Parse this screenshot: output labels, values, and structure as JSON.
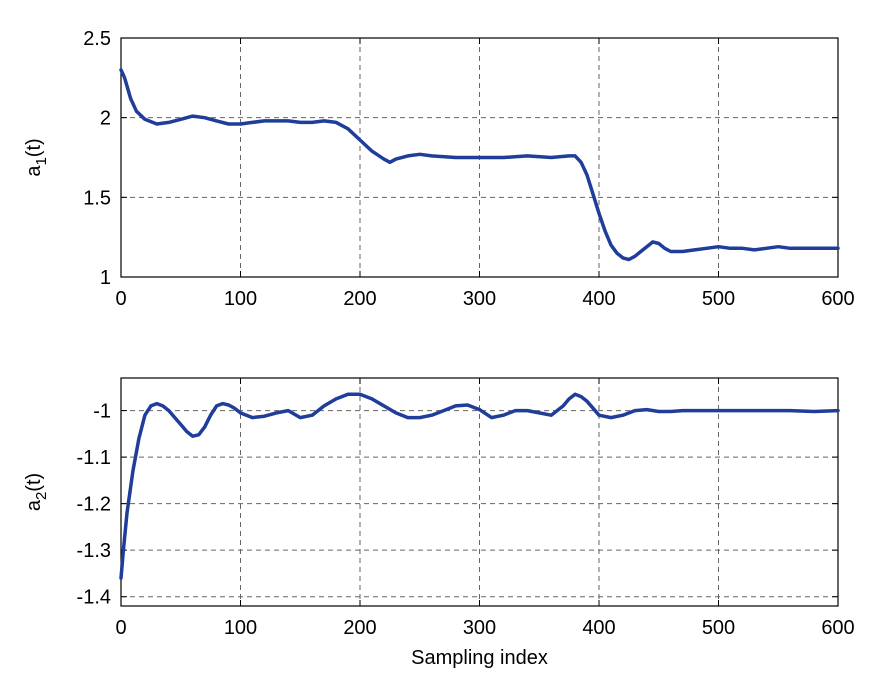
{
  "chart_data": [
    {
      "type": "line",
      "ylabel": "a1(t)",
      "ylabel_main": "a",
      "ylabel_sub": "1",
      "ylabel_tail": "(t)",
      "xlabel": "",
      "xlim": [
        0,
        600
      ],
      "ylim": [
        1,
        2.5
      ],
      "xticks": [
        0,
        100,
        200,
        300,
        400,
        500,
        600
      ],
      "yticks": [
        1,
        1.5,
        2,
        2.5
      ],
      "xtick_labels": [
        "0",
        "100",
        "200",
        "300",
        "400",
        "500",
        "600"
      ],
      "ytick_labels": [
        "1",
        "1.5",
        "2",
        "2.5"
      ],
      "grid": true,
      "series": [
        {
          "color": "#1f3d99",
          "x": [
            0,
            3,
            8,
            13,
            20,
            30,
            40,
            50,
            60,
            70,
            80,
            90,
            100,
            110,
            120,
            130,
            140,
            150,
            160,
            170,
            180,
            190,
            200,
            210,
            220,
            225,
            230,
            240,
            250,
            260,
            280,
            300,
            320,
            340,
            360,
            375,
            380,
            385,
            390,
            395,
            400,
            405,
            410,
            415,
            420,
            425,
            430,
            435,
            440,
            445,
            450,
            455,
            460,
            470,
            480,
            490,
            500,
            510,
            520,
            530,
            540,
            550,
            560,
            570,
            580,
            590,
            600
          ],
          "y": [
            2.3,
            2.25,
            2.12,
            2.04,
            1.99,
            1.96,
            1.97,
            1.99,
            2.01,
            2.0,
            1.98,
            1.96,
            1.96,
            1.97,
            1.98,
            1.98,
            1.98,
            1.97,
            1.97,
            1.98,
            1.97,
            1.93,
            1.86,
            1.79,
            1.74,
            1.72,
            1.74,
            1.76,
            1.77,
            1.76,
            1.75,
            1.75,
            1.75,
            1.76,
            1.75,
            1.76,
            1.76,
            1.72,
            1.64,
            1.52,
            1.4,
            1.29,
            1.2,
            1.15,
            1.12,
            1.11,
            1.13,
            1.16,
            1.19,
            1.22,
            1.21,
            1.18,
            1.16,
            1.16,
            1.17,
            1.18,
            1.19,
            1.18,
            1.18,
            1.17,
            1.18,
            1.19,
            1.18,
            1.18,
            1.18,
            1.18,
            1.18
          ]
        }
      ]
    },
    {
      "type": "line",
      "ylabel": "a2(t)",
      "ylabel_main": "a",
      "ylabel_sub": "2",
      "ylabel_tail": "(t)",
      "xlabel": "Sampling index",
      "xlim": [
        0,
        600
      ],
      "ylim": [
        -1.42,
        -0.93
      ],
      "xticks": [
        0,
        100,
        200,
        300,
        400,
        500,
        600
      ],
      "yticks": [
        -1.4,
        -1.3,
        -1.2,
        -1.1,
        -1
      ],
      "xtick_labels": [
        "0",
        "100",
        "200",
        "300",
        "400",
        "500",
        "600"
      ],
      "ytick_labels": [
        "-1.4",
        "-1.3",
        "-1.2",
        "-1.1",
        "-1"
      ],
      "grid": true,
      "series": [
        {
          "color": "#1f3d99",
          "x": [
            0,
            2,
            5,
            10,
            15,
            20,
            25,
            30,
            35,
            40,
            45,
            50,
            55,
            60,
            65,
            70,
            75,
            80,
            85,
            90,
            95,
            100,
            110,
            120,
            130,
            140,
            150,
            160,
            170,
            180,
            190,
            200,
            210,
            220,
            230,
            240,
            250,
            260,
            270,
            280,
            290,
            300,
            310,
            320,
            330,
            340,
            350,
            360,
            370,
            375,
            380,
            385,
            390,
            395,
            400,
            410,
            420,
            430,
            440,
            450,
            460,
            470,
            480,
            500,
            520,
            540,
            560,
            580,
            600
          ],
          "y": [
            -1.36,
            -1.3,
            -1.22,
            -1.13,
            -1.06,
            -1.01,
            -0.99,
            -0.985,
            -0.99,
            -1.0,
            -1.015,
            -1.03,
            -1.045,
            -1.055,
            -1.052,
            -1.035,
            -1.01,
            -0.99,
            -0.985,
            -0.988,
            -0.995,
            -1.005,
            -1.015,
            -1.012,
            -1.005,
            -1.0,
            -1.015,
            -1.01,
            -0.99,
            -0.975,
            -0.965,
            -0.965,
            -0.975,
            -0.99,
            -1.005,
            -1.015,
            -1.015,
            -1.01,
            -1.0,
            -0.99,
            -0.988,
            -0.998,
            -1.015,
            -1.01,
            -1.0,
            -1.0,
            -1.005,
            -1.01,
            -0.99,
            -0.975,
            -0.965,
            -0.97,
            -0.98,
            -0.995,
            -1.01,
            -1.015,
            -1.01,
            -1.0,
            -0.998,
            -1.002,
            -1.002,
            -1.0,
            -1.0,
            -1.0,
            -1.0,
            -1.0,
            -1.0,
            -1.002,
            -1.0
          ]
        }
      ]
    }
  ]
}
